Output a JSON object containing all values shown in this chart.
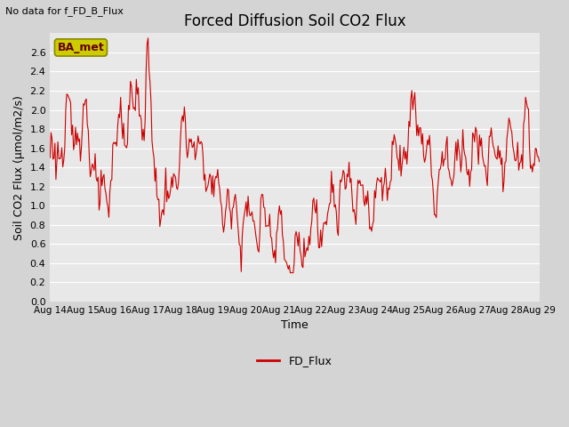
{
  "title": "Forced Diffusion Soil CO2 Flux",
  "xlabel": "Time",
  "ylabel": "Soil CO2 Flux (μmol/m2/s)",
  "top_left_text": "No data for f_FD_B_Flux",
  "legend_label": "FD_Flux",
  "box_label": "BA_met",
  "ylim": [
    0.0,
    2.8
  ],
  "yticks": [
    0.0,
    0.2,
    0.4,
    0.6,
    0.8,
    1.0,
    1.2,
    1.4,
    1.6,
    1.8,
    2.0,
    2.2,
    2.4,
    2.6
  ],
  "line_color": "#cc0000",
  "fig_bg_color": "#d4d4d4",
  "plot_bg_color": "#e8e8e8",
  "grid_color": "#ffffff",
  "box_bg": "#cccc00",
  "box_edge": "#888800",
  "figsize": [
    6.4,
    4.8
  ],
  "dpi": 100
}
